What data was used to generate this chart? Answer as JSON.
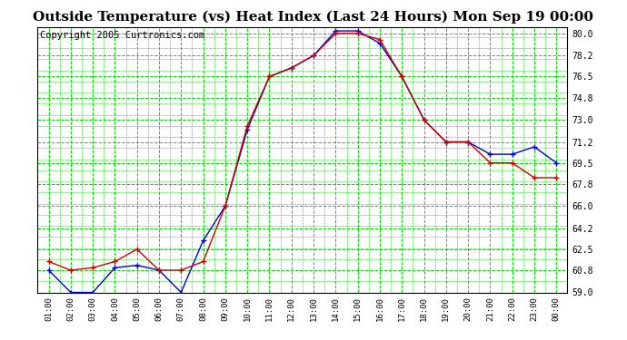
{
  "title": "Outside Temperature (vs) Heat Index (Last 24 Hours) Mon Sep 19 00:00",
  "copyright": "Copyright 2005 Curtronics.com",
  "x_labels": [
    "01:00",
    "02:00",
    "03:00",
    "04:00",
    "05:00",
    "06:00",
    "07:00",
    "08:00",
    "09:00",
    "10:00",
    "11:00",
    "12:00",
    "13:00",
    "14:00",
    "15:00",
    "16:00",
    "17:00",
    "18:00",
    "19:00",
    "20:00",
    "21:00",
    "22:00",
    "23:00",
    "00:00"
  ],
  "blue_data": [
    60.8,
    59.0,
    59.0,
    61.0,
    61.2,
    60.8,
    59.0,
    63.2,
    66.0,
    72.2,
    76.5,
    77.2,
    78.2,
    80.2,
    80.2,
    79.2,
    76.5,
    73.0,
    71.2,
    71.2,
    70.2,
    70.2,
    70.8,
    69.5
  ],
  "red_data": [
    61.5,
    60.8,
    61.0,
    61.5,
    62.5,
    60.8,
    60.8,
    61.5,
    66.0,
    72.5,
    76.5,
    77.2,
    78.2,
    80.0,
    80.0,
    79.5,
    76.5,
    73.0,
    71.2,
    71.2,
    69.5,
    69.5,
    68.3,
    68.3
  ],
  "ylim_min": 59.0,
  "ylim_max": 80.5,
  "yticks": [
    59.0,
    60.8,
    62.5,
    64.2,
    66.0,
    67.8,
    69.5,
    71.2,
    73.0,
    74.8,
    76.5,
    78.2,
    80.0
  ],
  "blue_color": "#0000cc",
  "red_color": "#cc0000",
  "bg_color": "#ffffff",
  "grid_color": "#00dd00",
  "title_fontsize": 11,
  "copyright_fontsize": 7.5
}
